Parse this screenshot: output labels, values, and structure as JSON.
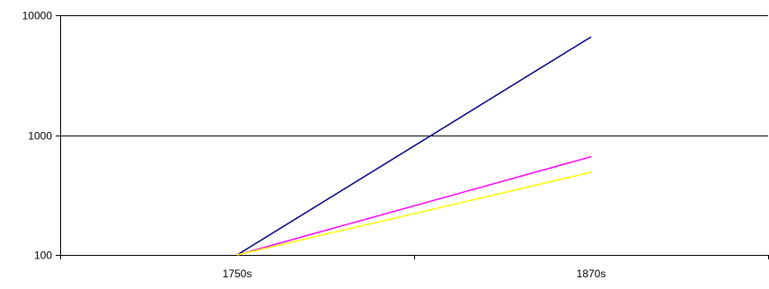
{
  "chart_data": {
    "type": "line",
    "title": "",
    "xlabel": "",
    "ylabel": "",
    "y_scale": "log",
    "ylim": [
      100,
      10000
    ],
    "y_ticks": [
      {
        "value": 100,
        "label": "100"
      },
      {
        "value": 1000,
        "label": "1000"
      },
      {
        "value": 10000,
        "label": "10000"
      }
    ],
    "categories": [
      "1750s",
      "1870s"
    ],
    "grid": true,
    "legend": "none",
    "series": [
      {
        "values": [
          100,
          6600
        ],
        "color": "#000080"
      },
      {
        "values": [
          100,
          660
        ],
        "color": "#ff00ff"
      },
      {
        "values": [
          100,
          490
        ],
        "color": "#ffff00"
      }
    ]
  }
}
